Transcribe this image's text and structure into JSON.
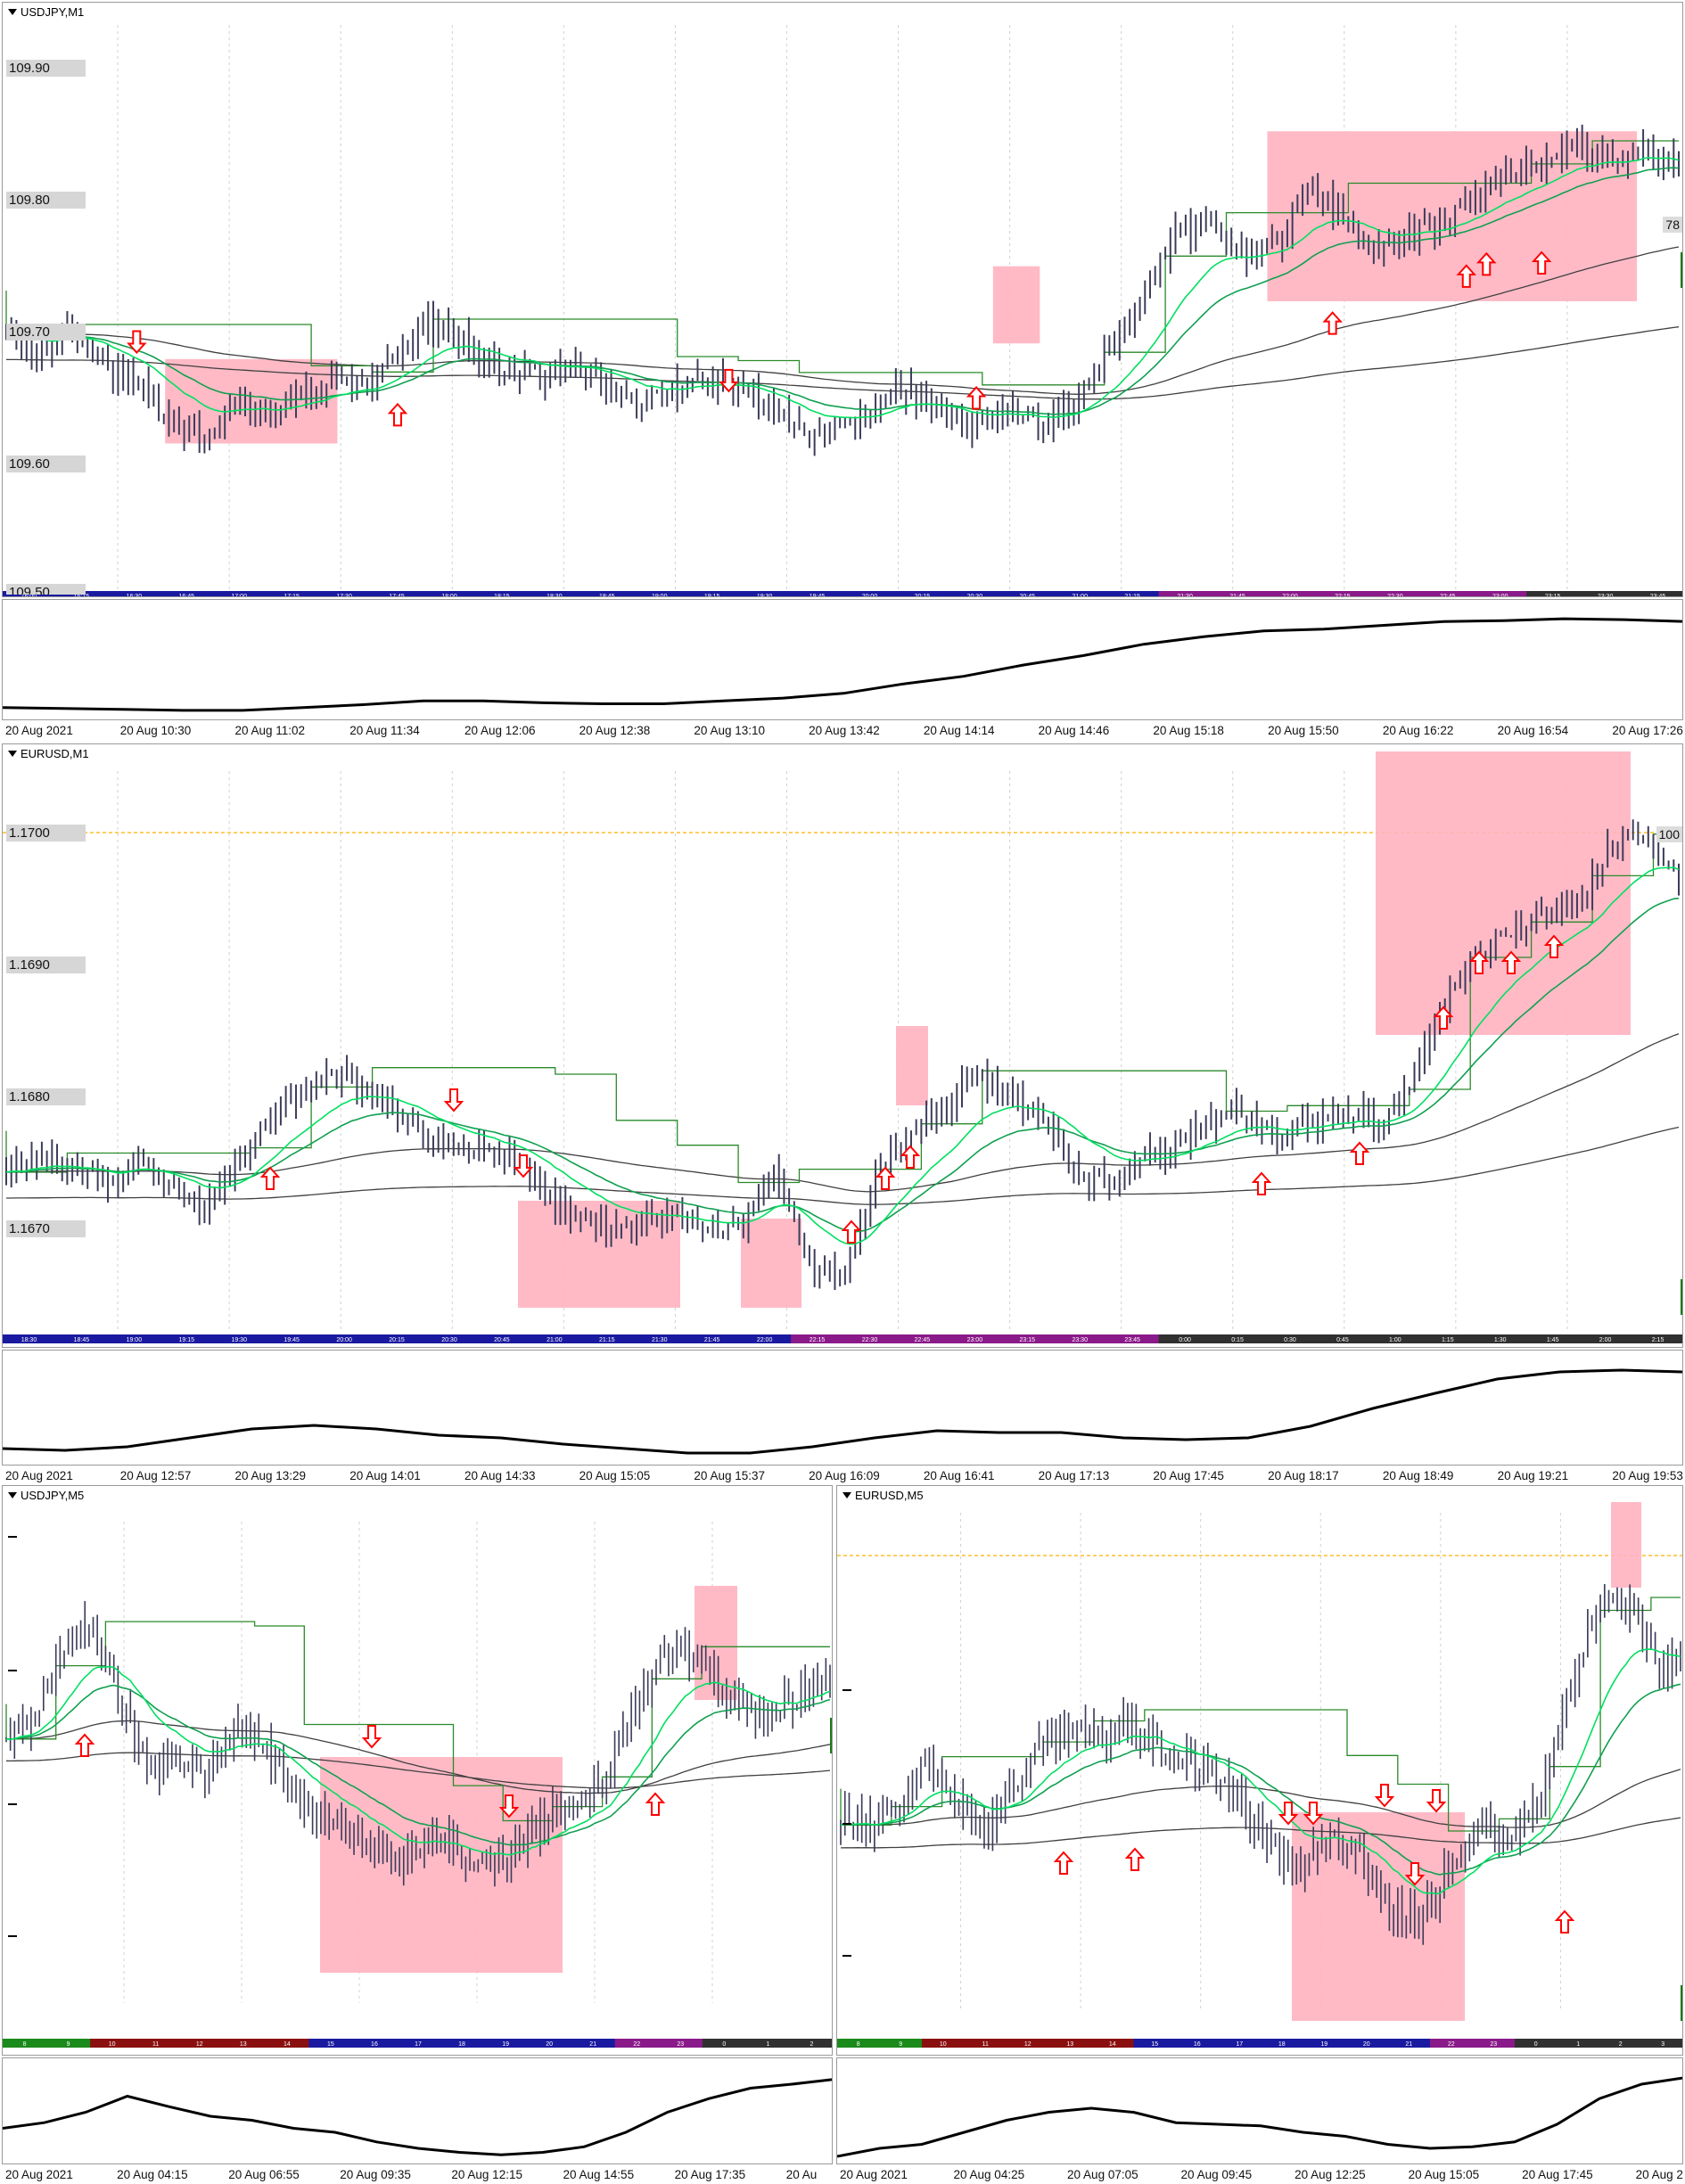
{
  "panels": [
    {
      "id": "usdjpy_m1",
      "title": "USDJPY,M1",
      "y_labels": [
        "109.90",
        "109.80",
        "109.70",
        "109.60",
        "109.50"
      ],
      "right_label": "78",
      "session_times": [
        "16:00",
        "16:15",
        "16:30",
        "16:45",
        "17:00",
        "17:15",
        "17:30",
        "17:45",
        "18:00",
        "18:15",
        "18:30",
        "18:45",
        "19:00",
        "19:15",
        "19:30",
        "19:45",
        "20:00",
        "20:15",
        "20:30",
        "20:45",
        "21:00",
        "21:15",
        "21:30",
        "21:45",
        "22:00",
        "22:15",
        "22:30",
        "22:45",
        "23:00",
        "23:15",
        "23:30",
        "23:45"
      ],
      "x_labels": [
        "20 Aug 2021",
        "20 Aug 10:30",
        "20 Aug 11:02",
        "20 Aug 11:34",
        "20 Aug 12:06",
        "20 Aug 12:38",
        "20 Aug 13:10",
        "20 Aug 13:42",
        "20 Aug 14:14",
        "20 Aug 14:46",
        "20 Aug 15:18",
        "20 Aug 15:50",
        "20 Aug 16:22",
        "20 Aug 16:54",
        "20 Aug 17:26"
      ]
    },
    {
      "id": "eurusd_m1",
      "title": "EURUSD,M1",
      "y_labels": [
        "1.1700",
        "1.1690",
        "1.1680",
        "1.1670"
      ],
      "right_label": "100",
      "session_times": [
        "18:30",
        "18:45",
        "19:00",
        "19:15",
        "19:30",
        "19:45",
        "20:00",
        "20:15",
        "20:30",
        "20:45",
        "21:00",
        "21:15",
        "21:30",
        "21:45",
        "22:00",
        "22:15",
        "22:30",
        "22:45",
        "23:00",
        "23:15",
        "23:30",
        "23:45",
        "0:00",
        "0:15",
        "0:30",
        "0:45",
        "1:00",
        "1:15",
        "1:30",
        "1:45",
        "2:00",
        "2:15"
      ],
      "x_labels": [
        "20 Aug 2021",
        "20 Aug 12:57",
        "20 Aug 13:29",
        "20 Aug 14:01",
        "20 Aug 14:33",
        "20 Aug 15:05",
        "20 Aug 15:37",
        "20 Aug 16:09",
        "20 Aug 16:41",
        "20 Aug 17:13",
        "20 Aug 17:45",
        "20 Aug 18:17",
        "20 Aug 18:49",
        "20 Aug 19:21",
        "20 Aug 19:53"
      ]
    },
    {
      "id": "usdjpy_m5",
      "title": "USDJPY,M5",
      "session_times": [
        "8",
        "9",
        "10",
        "11",
        "12",
        "13",
        "14",
        "15",
        "16",
        "17",
        "18",
        "19",
        "20",
        "21",
        "22",
        "23",
        "0",
        "1",
        "2"
      ],
      "x_labels": [
        "20 Aug 2021",
        "20 Aug 04:15",
        "20 Aug 06:55",
        "20 Aug 09:35",
        "20 Aug 12:15",
        "20 Aug 14:55",
        "20 Aug 17:35",
        "20 Au"
      ]
    },
    {
      "id": "eurusd_m5",
      "title": "EURUSD,M5",
      "session_times": [
        "8",
        "9",
        "10",
        "11",
        "12",
        "13",
        "14",
        "15",
        "16",
        "17",
        "18",
        "19",
        "20",
        "21",
        "22",
        "23",
        "0",
        "1",
        "2",
        "3"
      ],
      "x_labels": [
        "20 Aug 2021",
        "20 Aug 04:25",
        "20 Aug 07:05",
        "20 Aug 09:45",
        "20 Aug 12:25",
        "20 Aug 15:05",
        "20 Aug 17:45",
        "20 Aug 2"
      ]
    }
  ],
  "colors": {
    "candles": "#3c3c5a",
    "ma_fast": "#00e060",
    "ma_mid": "#10a050",
    "envelope": "#404040",
    "channel": "#2a8a2a",
    "zone": "#ffb3c0",
    "arrow": "#ff0000",
    "level_line": "#ffb000",
    "bar_blue": "#1a1aa0",
    "bar_purple": "#8a1a8a",
    "bar_dark": "#303030",
    "bar_red": "#8a1010",
    "bar_green": "#1a8a1a"
  },
  "chart_data": [
    {
      "type": "candlestick",
      "symbol": "USDJPY",
      "timeframe": "M1",
      "ylim": [
        109.5,
        109.94
      ],
      "close": [
        109.7,
        109.69,
        109.71,
        109.68,
        109.66,
        109.63,
        109.62,
        109.65,
        109.64,
        109.66,
        109.67,
        109.66,
        109.7,
        109.72,
        109.69,
        109.68,
        109.67,
        109.68,
        109.66,
        109.65,
        109.66,
        109.67,
        109.66,
        109.64,
        109.62,
        109.63,
        109.65,
        109.66,
        109.64,
        109.63,
        109.64,
        109.63,
        109.65,
        109.69,
        109.74,
        109.79,
        109.8,
        109.77,
        109.78,
        109.83,
        109.8,
        109.77,
        109.79,
        109.8,
        109.82,
        109.84,
        109.85,
        109.86,
        109.85,
        109.86,
        109.84
      ],
      "zones": [
        {
          "x0": 0.095,
          "x1": 0.198,
          "y0": 109.685,
          "y1": 109.615
        },
        {
          "x0": 0.59,
          "x1": 0.618,
          "y0": 109.762,
          "y1": 109.698
        },
        {
          "x0": 0.754,
          "x1": 0.975,
          "y0": 109.874,
          "y1": 109.733
        }
      ],
      "arrows": [
        {
          "x": 0.078,
          "y": 109.7,
          "dir": "down"
        },
        {
          "x": 0.234,
          "y": 109.638,
          "dir": "up"
        },
        {
          "x": 0.432,
          "y": 109.668,
          "dir": "down"
        },
        {
          "x": 0.58,
          "y": 109.652,
          "dir": "up"
        },
        {
          "x": 0.793,
          "y": 109.714,
          "dir": "up"
        },
        {
          "x": 0.873,
          "y": 109.753,
          "dir": "up"
        },
        {
          "x": 0.885,
          "y": 109.763,
          "dir": "up"
        },
        {
          "x": 0.918,
          "y": 109.764,
          "dir": "up"
        }
      ]
    },
    {
      "type": "candlestick",
      "symbol": "EURUSD",
      "timeframe": "M1",
      "ylim": [
        1.1663,
        1.1706
      ],
      "close": [
        1.1675,
        1.1676,
        1.1675,
        1.1674,
        1.1676,
        1.1673,
        1.1672,
        1.1676,
        1.168,
        1.1682,
        1.1683,
        1.1681,
        1.1679,
        1.1677,
        1.1677,
        1.1676,
        1.1673,
        1.1671,
        1.167,
        1.1671,
        1.1671,
        1.167,
        1.1671,
        1.1675,
        1.1667,
        1.1666,
        1.1675,
        1.1678,
        1.168,
        1.1683,
        1.1681,
        1.1679,
        1.1675,
        1.1674,
        1.1676,
        1.1677,
        1.1679,
        1.168,
        1.1678,
        1.1679,
        1.168,
        1.1679,
        1.1682,
        1.1689,
        1.1693,
        1.1695,
        1.1696,
        1.1697,
        1.1702,
        1.1703,
        1.1699
      ]
    },
    {
      "type": "candlestick",
      "symbol": "USDJPY",
      "timeframe": "M5",
      "close": [
        0.55,
        0.6,
        0.78,
        0.82,
        0.65,
        0.5,
        0.52,
        0.48,
        0.58,
        0.55,
        0.45,
        0.4,
        0.35,
        0.32,
        0.3,
        0.34,
        0.3,
        0.28,
        0.32,
        0.38,
        0.42,
        0.46,
        0.62,
        0.74,
        0.76,
        0.7,
        0.64,
        0.62,
        0.68,
        0.72
      ]
    },
    {
      "type": "candlestick",
      "symbol": "EURUSD",
      "timeframe": "M5",
      "close": [
        0.38,
        0.36,
        0.42,
        0.5,
        0.44,
        0.36,
        0.46,
        0.55,
        0.58,
        0.56,
        0.6,
        0.54,
        0.5,
        0.48,
        0.4,
        0.32,
        0.28,
        0.34,
        0.3,
        0.2,
        0.14,
        0.3,
        0.36,
        0.34,
        0.4,
        0.62,
        0.84,
        0.88,
        0.74,
        0.7
      ]
    }
  ]
}
